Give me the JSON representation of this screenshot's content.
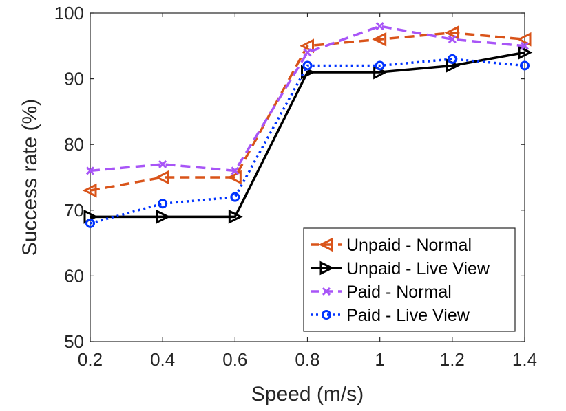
{
  "chart_data": {
    "type": "line",
    "title": "",
    "xlabel": "Speed (m/s)",
    "ylabel": "Success rate (%)",
    "x": [
      0.2,
      0.4,
      0.6,
      0.8,
      1,
      1.2,
      1.4
    ],
    "x_tick_labels": [
      "0.2",
      "0.4",
      "0.6",
      "0.8",
      "1",
      "1.2",
      "1.4"
    ],
    "xlim": [
      0.2,
      1.4
    ],
    "ylim": [
      50,
      100
    ],
    "y_ticks": [
      50,
      60,
      70,
      80,
      90,
      100
    ],
    "y_tick_labels": [
      "50",
      "60",
      "70",
      "80",
      "90",
      "100"
    ],
    "grid": false,
    "legend_position": "bottom-right",
    "series": [
      {
        "name": "Unpaid - Normal",
        "values": [
          73,
          75,
          75,
          95,
          96,
          97,
          96
        ],
        "color": "#D95319",
        "marker": "triangle-left",
        "line_style": "dashed"
      },
      {
        "name": "Unpaid - Live View",
        "values": [
          69,
          69,
          69,
          91,
          91,
          92,
          94
        ],
        "color": "#000000",
        "marker": "triangle-right",
        "line_style": "solid"
      },
      {
        "name": "Paid - Normal",
        "values": [
          76,
          77,
          76,
          94,
          98,
          96,
          95
        ],
        "color": "#A855F7",
        "marker": "x",
        "line_style": "dashed"
      },
      {
        "name": "Paid - Live View",
        "values": [
          68,
          71,
          72,
          92,
          92,
          93,
          92
        ],
        "color": "#0033FF",
        "marker": "circle",
        "line_style": "dotted"
      }
    ]
  }
}
